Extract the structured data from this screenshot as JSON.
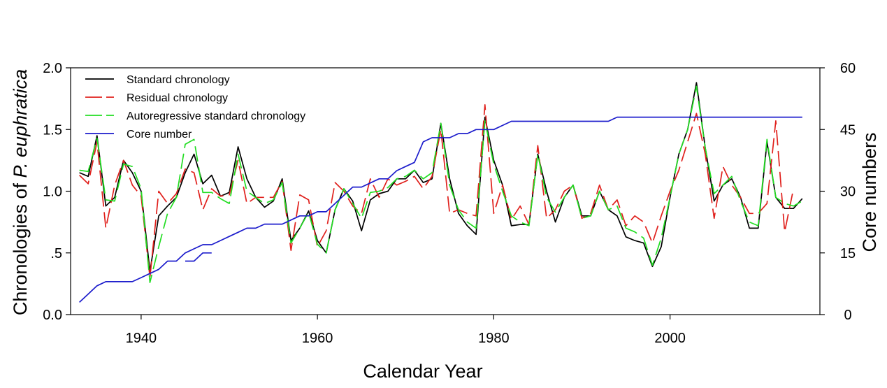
{
  "chart_data": {
    "type": "line",
    "xlabel": "Calendar Year",
    "ylabel_left_parts": [
      "Chronologies  of ",
      "P. euphratica"
    ],
    "ylabel_right": "Core numbers",
    "xlim": [
      1932,
      2017
    ],
    "ylim_left": [
      0,
      2
    ],
    "ylim_right": [
      0,
      60
    ],
    "x_ticks": [
      {
        "value": 1940,
        "label": "1940"
      },
      {
        "value": 1960,
        "label": "1960"
      },
      {
        "value": 1980,
        "label": "1980"
      },
      {
        "value": 2000,
        "label": "2000"
      }
    ],
    "y_left_ticks": [
      {
        "value": 0,
        "label": "0.0"
      },
      {
        "value": 0.5,
        "label": ".5"
      },
      {
        "value": 1,
        "label": "1.0"
      },
      {
        "value": 1.5,
        "label": "1.5"
      },
      {
        "value": 2,
        "label": "2.0"
      }
    ],
    "y_right_ticks": [
      {
        "value": 0,
        "label": "0"
      },
      {
        "value": 15,
        "label": "15"
      },
      {
        "value": 30,
        "label": "30"
      },
      {
        "value": 45,
        "label": "45"
      },
      {
        "value": 60,
        "label": "60"
      }
    ],
    "legend_position": "top-left",
    "series": [
      {
        "name": "Standard chronology",
        "axis": "left",
        "color": "#000000",
        "dash": "solid",
        "x": [
          1933,
          1934,
          1935,
          1936,
          1937,
          1938,
          1939,
          1940,
          1941,
          1942,
          1943,
          1944,
          1945,
          1946,
          1947,
          1948,
          1949,
          1950,
          1951,
          1952,
          1953,
          1954,
          1955,
          1956,
          1957,
          1958,
          1959,
          1960,
          1961,
          1962,
          1963,
          1964,
          1965,
          1966,
          1967,
          1968,
          1969,
          1970,
          1971,
          1972,
          1973,
          1974,
          1975,
          1976,
          1977,
          1978,
          1979,
          1980,
          1981,
          1982,
          1983,
          1984,
          1985,
          1986,
          1987,
          1988,
          1989,
          1990,
          1991,
          1992,
          1993,
          1994,
          1995,
          1996,
          1997,
          1998,
          1999,
          2000,
          2001,
          2002,
          2003,
          2004,
          2005,
          2006,
          2007,
          2008,
          2009,
          2010,
          2011,
          2012,
          2013,
          2014,
          2015
        ],
        "y": [
          1.15,
          1.12,
          1.45,
          0.88,
          0.95,
          1.25,
          1.15,
          1.0,
          0.35,
          0.8,
          0.88,
          0.95,
          1.15,
          1.3,
          1.06,
          1.13,
          0.96,
          0.99,
          1.36,
          1.1,
          0.95,
          0.87,
          0.92,
          1.1,
          0.6,
          0.7,
          0.84,
          0.6,
          0.5,
          0.85,
          1.02,
          0.92,
          0.68,
          0.93,
          0.98,
          1.0,
          1.1,
          1.1,
          1.17,
          1.07,
          1.1,
          1.55,
          1.1,
          0.82,
          0.72,
          0.65,
          1.6,
          1.25,
          1.05,
          0.72,
          0.73,
          0.73,
          1.3,
          1.0,
          0.75,
          0.95,
          1.05,
          0.8,
          0.8,
          1.0,
          0.85,
          0.8,
          0.63,
          0.6,
          0.58,
          0.39,
          0.55,
          0.95,
          1.3,
          1.5,
          1.88,
          1.35,
          0.92,
          1.05,
          1.1,
          0.95,
          0.7,
          0.7,
          1.4,
          0.95,
          0.86,
          0.86,
          0.94
        ]
      },
      {
        "name": "Residual chronology",
        "axis": "left",
        "color": "#e0201c",
        "dash": "long-dash",
        "x": [
          1933,
          1934,
          1935,
          1936,
          1937,
          1938,
          1939,
          1940,
          1941,
          1942,
          1943,
          1944,
          1945,
          1946,
          1947,
          1948,
          1949,
          1950,
          1951,
          1952,
          1953,
          1954,
          1955,
          1956,
          1957,
          1958,
          1959,
          1960,
          1961,
          1962,
          1963,
          1964,
          1965,
          1966,
          1967,
          1968,
          1969,
          1970,
          1971,
          1972,
          1973,
          1974,
          1975,
          1976,
          1977,
          1978,
          1979,
          1980,
          1981,
          1982,
          1983,
          1984,
          1985,
          1986,
          1987,
          1988,
          1989,
          1990,
          1991,
          1992,
          1993,
          1994,
          1995,
          1996,
          1997,
          1998,
          1999,
          2000,
          2001,
          2002,
          2003,
          2004,
          2005,
          2006,
          2007,
          2008,
          2009,
          2010,
          2011,
          2012,
          2013,
          2014
        ],
        "y": [
          1.13,
          1.06,
          1.4,
          0.7,
          1.05,
          1.25,
          1.05,
          0.96,
          0.3,
          1.0,
          0.9,
          0.98,
          1.18,
          1.15,
          0.85,
          1.02,
          0.96,
          0.97,
          1.25,
          0.9,
          0.95,
          0.95,
          0.95,
          1.08,
          0.52,
          0.97,
          0.93,
          0.55,
          0.68,
          1.07,
          1.0,
          0.88,
          0.82,
          1.1,
          0.95,
          1.1,
          1.05,
          1.08,
          1.12,
          1.02,
          1.12,
          1.5,
          0.82,
          0.85,
          0.82,
          0.8,
          1.7,
          0.82,
          1.05,
          0.77,
          0.88,
          0.73,
          1.37,
          0.78,
          0.85,
          1.0,
          1.05,
          0.78,
          0.82,
          1.05,
          0.85,
          0.93,
          0.72,
          0.8,
          0.75,
          0.58,
          0.8,
          1.0,
          1.17,
          1.4,
          1.63,
          1.3,
          0.78,
          1.2,
          1.05,
          0.95,
          0.82,
          0.82,
          0.9,
          1.57,
          0.67,
          1.02
        ]
      },
      {
        "name": "Autoregressive standard chronology",
        "axis": "left",
        "color": "#22dd22",
        "dash": "long-dash",
        "x": [
          1933,
          1934,
          1935,
          1936,
          1937,
          1938,
          1939,
          1940,
          1941,
          1942,
          1943,
          1944,
          1945,
          1946,
          1947,
          1948,
          1949,
          1950,
          1951,
          1952,
          1953,
          1954,
          1955,
          1956,
          1957,
          1958,
          1959,
          1960,
          1961,
          1962,
          1963,
          1964,
          1965,
          1966,
          1967,
          1968,
          1969,
          1970,
          1971,
          1972,
          1973,
          1974,
          1975,
          1976,
          1977,
          1978,
          1979,
          1980,
          1981,
          1982,
          1983,
          1984,
          1985,
          1986,
          1987,
          1988,
          1989,
          1990,
          1991,
          1992,
          1993,
          1994,
          1995,
          1996,
          1997,
          1998,
          1999,
          2000,
          2001,
          2002,
          2003,
          2004,
          2005,
          2006,
          2007,
          2008,
          2009,
          2010,
          2011,
          2012,
          2013,
          2014,
          2015
        ],
        "y": [
          1.17,
          1.16,
          1.43,
          0.93,
          0.92,
          1.22,
          1.2,
          1.02,
          0.26,
          0.55,
          0.82,
          0.95,
          1.38,
          1.42,
          0.99,
          0.99,
          0.94,
          0.9,
          1.3,
          1.0,
          0.95,
          0.9,
          0.93,
          1.07,
          0.58,
          0.7,
          0.83,
          0.57,
          0.5,
          0.85,
          1.02,
          0.9,
          0.78,
          0.99,
          1.0,
          1.03,
          1.1,
          1.12,
          1.17,
          1.1,
          1.15,
          1.55,
          1.05,
          0.85,
          0.75,
          0.7,
          1.57,
          1.22,
          1.0,
          0.8,
          0.75,
          0.72,
          1.3,
          0.95,
          0.83,
          0.95,
          1.05,
          0.78,
          0.8,
          1.0,
          0.85,
          0.88,
          0.7,
          0.67,
          0.62,
          0.4,
          0.62,
          0.95,
          1.3,
          1.5,
          1.85,
          1.35,
          0.98,
          1.05,
          1.12,
          0.92,
          0.75,
          0.72,
          1.42,
          0.95,
          0.9,
          0.88,
          0.92
        ]
      },
      {
        "name": "Core number",
        "axis": "right",
        "color": "#1c1ccc",
        "dash": "solid",
        "x": [
          1933,
          1934,
          1935,
          1936,
          1937,
          1938,
          1939,
          1940,
          1941,
          1942,
          1943,
          1944,
          1945,
          1946,
          1947,
          1948,
          1949,
          1950,
          1951,
          1952,
          1953,
          1954,
          1955,
          1956,
          1957,
          1958,
          1959,
          1960,
          1961,
          1962,
          1963,
          1964,
          1965,
          1966,
          1967,
          1968,
          1969,
          1970,
          1971,
          1972,
          1973,
          1974,
          1975,
          1976,
          1977,
          1978,
          1979,
          1980,
          1981,
          1982,
          1983,
          1984,
          1985,
          1986,
          1987,
          1988,
          1989,
          1990,
          1991,
          1992,
          1993,
          1994,
          1995,
          1996,
          1997,
          1998,
          1999,
          2000,
          2001,
          2002,
          2003,
          2004,
          2005,
          2006,
          2007,
          2008,
          2009,
          2010,
          2011,
          2012,
          2013,
          2014,
          2015
        ],
        "y": [
          3,
          5,
          7,
          8,
          8,
          8,
          8,
          9,
          10,
          11,
          13,
          13,
          15,
          16,
          17,
          17,
          18,
          19,
          20,
          21,
          21,
          22,
          22,
          22,
          23,
          24,
          24,
          25,
          25,
          27,
          29,
          31,
          31,
          32,
          33,
          33,
          35,
          36,
          37,
          42,
          43,
          43,
          43,
          44,
          44,
          45,
          45,
          45,
          46,
          47,
          47,
          47,
          47,
          47,
          47,
          47,
          47,
          47,
          47,
          47,
          47,
          48,
          48,
          48,
          48,
          48,
          48,
          48,
          48,
          48,
          48,
          48,
          48,
          48,
          48,
          48,
          48,
          48,
          48,
          48,
          48,
          48,
          48
        ]
      },
      {
        "name": "",
        "axis": "right",
        "color": "#1c1ccc",
        "dash": "solid",
        "x": [
          1945,
          1946,
          1947,
          1948
        ],
        "y": [
          13,
          13,
          15,
          15
        ]
      }
    ]
  }
}
